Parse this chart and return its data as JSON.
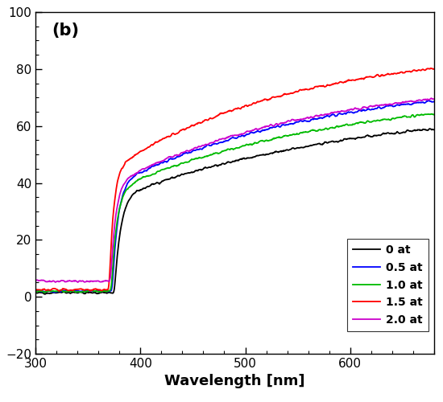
{
  "title": "(b)",
  "xlabel": "Wavelength [nm]",
  "ylabel": "",
  "xlim": [
    300,
    680
  ],
  "ylim": [
    -20,
    100
  ],
  "yticks": [
    -20,
    0,
    20,
    40,
    60,
    80,
    100
  ],
  "xticks": [
    300,
    400,
    500,
    600
  ],
  "legend_labels": [
    "0 at",
    "0.5 at",
    "1.0 at",
    "1.5 at",
    "2.0 at"
  ],
  "line_colors": [
    "#000000",
    "#0000ff",
    "#00bb00",
    "#ff0000",
    "#cc00cc"
  ],
  "background_color": "#ffffff",
  "figsize": [
    5.5,
    5.0
  ],
  "dpi": 100
}
